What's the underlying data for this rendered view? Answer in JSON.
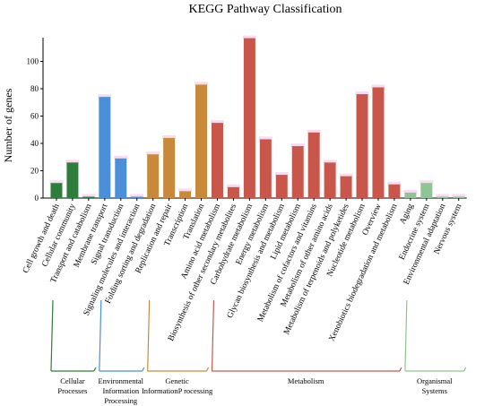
{
  "chart_data": {
    "type": "bar",
    "title": "KEGG Pathway Classification",
    "ylabel": "Number of genes",
    "xlabel": "",
    "ylim": [
      0,
      120
    ],
    "yticks": [
      0,
      20,
      40,
      60,
      80,
      100
    ],
    "grid": false,
    "categories": [
      "Cell growth and death",
      "Cellular community",
      "Transport and catabolism",
      "Membrane transport",
      "Signal transduction",
      "Signaling molecules and interaction",
      "Folding sorting and degradation",
      "Replication and repair",
      "Transcription",
      "Translation",
      "Amino acid metabolism",
      "Biosynthesis of other secondary metabolites",
      "Carbohydrate metabolism",
      "Energy metabolism",
      "Glycan biosynthesis and metabolism",
      "Lipid metabolism",
      "Metabolism of cofactors and vitamins",
      "Metabolism of other amino acids",
      "Metabolism of terpenoids and polyketides",
      "Nucleotide metabolism",
      "Overview",
      "Xenobiotics biodegradation and metabolism",
      "Aging",
      "Endocrine system",
      "Environmental adaptation",
      "Nervous system"
    ],
    "values": [
      11,
      26,
      1,
      74,
      29,
      1,
      32,
      44,
      5,
      83,
      55,
      8,
      117,
      43,
      17,
      38,
      48,
      26,
      16,
      76,
      81,
      10,
      4,
      11,
      1,
      1
    ],
    "groups": [
      {
        "label": "Cellular Processes",
        "start": 0,
        "end": 2,
        "color": "#2e7d3a"
      },
      {
        "label": "Environmental Information Processing",
        "start": 3,
        "end": 5,
        "color": "#4a8fd8"
      },
      {
        "label": "Genetic InformationP rocessing",
        "start": 6,
        "end": 9,
        "color": "#c88a3a"
      },
      {
        "label": "Metabolism",
        "start": 10,
        "end": 21,
        "color": "#c9564a"
      },
      {
        "label": "Organismal Systems",
        "start": 22,
        "end": 25,
        "color": "#8fc494"
      }
    ]
  }
}
